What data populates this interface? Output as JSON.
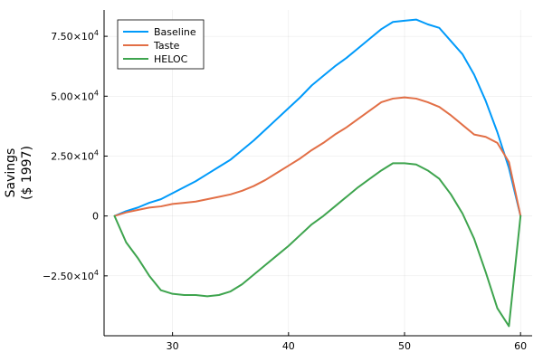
{
  "chart_data": {
    "type": "line",
    "title": "",
    "xlabel": "",
    "ylabel_lines": [
      "Savings",
      "($ 1997)"
    ],
    "xlim": [
      24.1,
      61
    ],
    "ylim": [
      -50000,
      86000
    ],
    "x_ticks": [
      30,
      40,
      50,
      60
    ],
    "y_ticks": [
      {
        "value": 75000,
        "mantissa": "7.50",
        "exp": "4"
      },
      {
        "value": 50000,
        "mantissa": "5.00",
        "exp": "4"
      },
      {
        "value": 25000,
        "mantissa": "2.50",
        "exp": "4"
      },
      {
        "value": 0,
        "plain": "0"
      },
      {
        "value": -25000,
        "mantissa": "−2.50",
        "exp": "4"
      }
    ],
    "grid": true,
    "legend_position": "top-left",
    "x": [
      25,
      26,
      27,
      28,
      29,
      30,
      31,
      32,
      33,
      34,
      35,
      36,
      37,
      38,
      39,
      40,
      41,
      42,
      43,
      44,
      45,
      46,
      47,
      48,
      49,
      50,
      51,
      52,
      53,
      54,
      55,
      56,
      57,
      58,
      59,
      60
    ],
    "series": [
      {
        "name": "Baseline",
        "color": "#009AFA",
        "values": [
          0,
          2000,
          3500,
          5500,
          7000,
          9500,
          12000,
          14500,
          17500,
          20500,
          23500,
          27500,
          31500,
          36000,
          40500,
          45000,
          49500,
          54500,
          58500,
          62500,
          66000,
          70000,
          74000,
          78000,
          81000,
          81500,
          82000,
          80000,
          78500,
          73000,
          67500,
          59000,
          48000,
          35000,
          20000,
          0
        ]
      },
      {
        "name": "Taste",
        "color": "#E26F46",
        "values": [
          0,
          1500,
          2500,
          3500,
          4000,
          5000,
          5500,
          6000,
          7000,
          8000,
          9000,
          10500,
          12500,
          15000,
          18000,
          21000,
          24000,
          27500,
          30500,
          34000,
          37000,
          40500,
          44000,
          47500,
          49000,
          49500,
          49000,
          47500,
          45500,
          42000,
          38000,
          34000,
          33000,
          30500,
          22500,
          0
        ]
      },
      {
        "name": "HELOC",
        "color": "#3EA44E",
        "values": [
          0,
          -11000,
          -17500,
          -25000,
          -31000,
          -32500,
          -33000,
          -33000,
          -33500,
          -33000,
          -31500,
          -28500,
          -24500,
          -20500,
          -16500,
          -12500,
          -8000,
          -3500,
          0,
          4000,
          8000,
          12000,
          15500,
          19000,
          22000,
          22000,
          21500,
          19000,
          15500,
          9000,
          1000,
          -9500,
          -23500,
          -38500,
          -46000,
          0
        ]
      }
    ]
  }
}
